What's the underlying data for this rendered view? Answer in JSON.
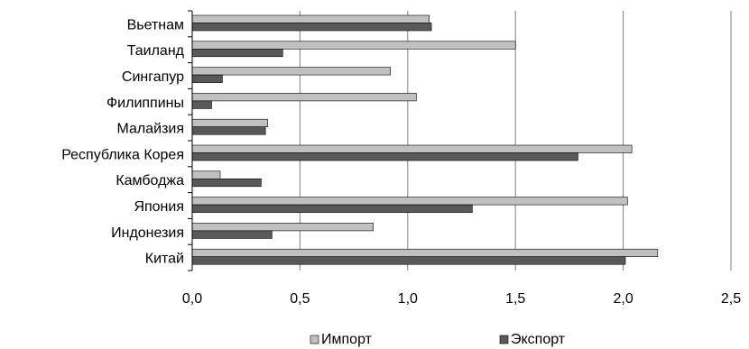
{
  "chart_data": {
    "type": "bar",
    "orientation": "horizontal",
    "categories": [
      "Вьетнам",
      "Таиланд",
      "Сингапур",
      "Филиппины",
      "Малайзия",
      "Республика Корея",
      "Камбоджа",
      "Япония",
      "Индонезия",
      "Китай"
    ],
    "series": [
      {
        "name": "Импорт",
        "color": "#c0c0c0",
        "values": [
          1.1,
          1.5,
          0.92,
          1.04,
          0.35,
          2.04,
          0.13,
          2.02,
          0.84,
          2.16
        ]
      },
      {
        "name": "Экспорт",
        "color": "#595959",
        "values": [
          1.11,
          0.42,
          0.14,
          0.09,
          0.34,
          1.79,
          0.32,
          1.3,
          0.37,
          2.01
        ]
      }
    ],
    "x_ticks": [
      "0,0",
      "0,5",
      "1,0",
      "1,5",
      "2,0",
      "2,5"
    ],
    "xlim": [
      0,
      2.5
    ],
    "grid": "vertical",
    "legend_position": "bottom",
    "title": "",
    "xlabel": "",
    "ylabel": ""
  }
}
